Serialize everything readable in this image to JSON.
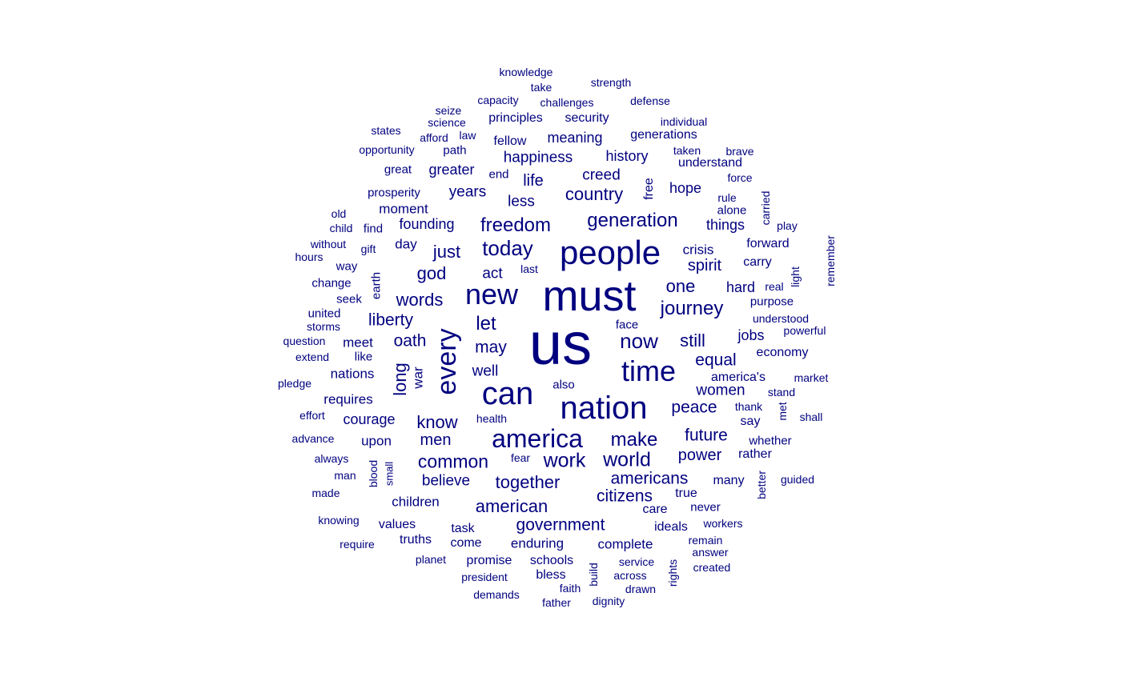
{
  "color": "#00007f",
  "words": [
    {
      "text": "us",
      "weight": 10
    },
    {
      "text": "must",
      "weight": 7.5
    },
    {
      "text": "people",
      "weight": 6.5
    },
    {
      "text": "can",
      "weight": 6.2
    },
    {
      "text": "nation",
      "weight": 6.2
    },
    {
      "text": "new",
      "weight": 5.8
    },
    {
      "text": "time",
      "weight": 5.8
    },
    {
      "text": "every",
      "weight": 5.2
    },
    {
      "text": "america",
      "weight": 5.0
    },
    {
      "text": "generation",
      "weight": 4.1
    },
    {
      "text": "freedom",
      "weight": 4.1
    },
    {
      "text": "today",
      "weight": 4.1
    },
    {
      "text": "journey",
      "weight": 4.1
    },
    {
      "text": "now",
      "weight": 4.1
    },
    {
      "text": "common",
      "weight": 3.9
    },
    {
      "text": "work",
      "weight": 3.9
    },
    {
      "text": "world",
      "weight": 3.9
    },
    {
      "text": "make",
      "weight": 3.9
    },
    {
      "text": "american",
      "weight": 3.7
    },
    {
      "text": "country",
      "weight": 3.7
    },
    {
      "text": "let",
      "weight": 3.7
    },
    {
      "text": "one",
      "weight": 3.7
    },
    {
      "text": "still",
      "weight": 3.7
    },
    {
      "text": "know",
      "weight": 3.7
    },
    {
      "text": "god",
      "weight": 3.7
    },
    {
      "text": "just",
      "weight": 3.7
    },
    {
      "text": "long",
      "weight": 3.6
    },
    {
      "text": "words",
      "weight": 3.6
    },
    {
      "text": "together",
      "weight": 3.6
    },
    {
      "text": "americans",
      "weight": 3.6
    },
    {
      "text": "government",
      "weight": 3.6
    },
    {
      "text": "citizens",
      "weight": 3.6
    },
    {
      "text": "equal",
      "weight": 3.6
    },
    {
      "text": "peace",
      "weight": 3.6
    },
    {
      "text": "future",
      "weight": 3.6
    },
    {
      "text": "liberty",
      "weight": 3.5
    },
    {
      "text": "oath",
      "weight": 3.5
    },
    {
      "text": "may",
      "weight": 3.5
    },
    {
      "text": "spirit",
      "weight": 3.4
    },
    {
      "text": "men",
      "weight": 3.4
    },
    {
      "text": "power",
      "weight": 3.3
    },
    {
      "text": "women",
      "weight": 3.3
    },
    {
      "text": "believe",
      "weight": 3.3
    },
    {
      "text": "happiness",
      "weight": 3.3
    },
    {
      "text": "years",
      "weight": 3.3
    },
    {
      "text": "less",
      "weight": 3.3
    },
    {
      "text": "life",
      "weight": 3.3
    },
    {
      "text": "creed",
      "weight": 3.3
    },
    {
      "text": "well",
      "weight": 3.3
    },
    {
      "text": "act",
      "weight": 3.3
    },
    {
      "text": "hope",
      "weight": 3.2
    },
    {
      "text": "hard",
      "weight": 3.2
    },
    {
      "text": "jobs",
      "weight": 3.2
    },
    {
      "text": "things",
      "weight": 3.2
    },
    {
      "text": "founding",
      "weight": 3.2
    },
    {
      "text": "courage",
      "weight": 3.2
    },
    {
      "text": "history",
      "weight": 3.2
    },
    {
      "text": "meaning",
      "weight": 3.2
    },
    {
      "text": "greater",
      "weight": 3.2
    },
    {
      "text": "children",
      "weight": 3.1
    },
    {
      "text": "moment",
      "weight": 3.1
    },
    {
      "text": "complete",
      "weight": 3.1
    },
    {
      "text": "enduring",
      "weight": 3.1
    },
    {
      "text": "requires",
      "weight": 3.1
    },
    {
      "text": "nations",
      "weight": 3.1
    },
    {
      "text": "crisis",
      "weight": 3.1
    },
    {
      "text": "day",
      "weight": 3.1
    },
    {
      "text": "war",
      "weight": 3.0
    },
    {
      "text": "meet",
      "weight": 3.0
    },
    {
      "text": "upon",
      "weight": 3.0
    },
    {
      "text": "say",
      "weight": 3.0
    },
    {
      "text": "care",
      "weight": 3.0
    },
    {
      "text": "values",
      "weight": 3.0
    },
    {
      "text": "ideals",
      "weight": 3.0
    },
    {
      "text": "promise",
      "weight": 3.0
    },
    {
      "text": "schools",
      "weight": 3.0
    },
    {
      "text": "bless",
      "weight": 3.0
    },
    {
      "text": "truths",
      "weight": 3.0
    },
    {
      "text": "free",
      "weight": 3.0
    },
    {
      "text": "generations",
      "weight": 3.0
    },
    {
      "text": "principles",
      "weight": 3.0
    },
    {
      "text": "security",
      "weight": 3.0
    },
    {
      "text": "fellow",
      "weight": 3.0
    },
    {
      "text": "forward",
      "weight": 3.0
    },
    {
      "text": "economy",
      "weight": 3.0
    },
    {
      "text": "understand",
      "weight": 2.9
    },
    {
      "text": "task",
      "weight": 2.9
    },
    {
      "text": "come",
      "weight": 2.9
    },
    {
      "text": "america's",
      "weight": 2.9
    },
    {
      "text": "carry",
      "weight": 2.9
    },
    {
      "text": "many",
      "weight": 2.9
    },
    {
      "text": "never",
      "weight": 2.9
    },
    {
      "text": "true",
      "weight": 2.9
    },
    {
      "text": "rather",
      "weight": 2.9
    },
    {
      "text": "whether",
      "weight": 2.9
    },
    {
      "text": "prosperity",
      "weight": 2.9
    },
    {
      "text": "great",
      "weight": 2.9
    },
    {
      "text": "path",
      "weight": 2.9
    },
    {
      "text": "find",
      "weight": 2.9
    },
    {
      "text": "face",
      "weight": 2.9
    },
    {
      "text": "earth",
      "weight": 2.9
    },
    {
      "text": "purpose",
      "weight": 2.9
    },
    {
      "text": "alone",
      "weight": 2.9
    },
    {
      "text": "way",
      "weight": 2.9
    },
    {
      "text": "change",
      "weight": 2.9
    },
    {
      "text": "seek",
      "weight": 2.9
    },
    {
      "text": "united",
      "weight": 2.9
    },
    {
      "text": "like",
      "weight": 2.9
    },
    {
      "text": "also",
      "weight": 2.9
    },
    {
      "text": "end",
      "weight": 2.9
    },
    {
      "text": "gift",
      "weight": 2.8
    },
    {
      "text": "fear",
      "weight": 2.8
    },
    {
      "text": "health",
      "weight": 2.8
    },
    {
      "text": "service",
      "weight": 2.8
    },
    {
      "text": "across",
      "weight": 2.8
    },
    {
      "text": "drawn",
      "weight": 2.8
    },
    {
      "text": "build",
      "weight": 2.8
    },
    {
      "text": "rights",
      "weight": 2.8
    },
    {
      "text": "answer",
      "weight": 2.8
    },
    {
      "text": "created",
      "weight": 2.8
    },
    {
      "text": "remain",
      "weight": 2.8
    },
    {
      "text": "workers",
      "weight": 2.8
    },
    {
      "text": "better",
      "weight": 2.8
    },
    {
      "text": "guided",
      "weight": 2.8
    },
    {
      "text": "met",
      "weight": 2.8
    },
    {
      "text": "shall",
      "weight": 2.8
    },
    {
      "text": "stand",
      "weight": 2.8
    },
    {
      "text": "thank",
      "weight": 2.8
    },
    {
      "text": "market",
      "weight": 2.8
    },
    {
      "text": "powerful",
      "weight": 2.8
    },
    {
      "text": "understood",
      "weight": 2.8
    },
    {
      "text": "real",
      "weight": 2.8
    },
    {
      "text": "light",
      "weight": 2.8
    },
    {
      "text": "remember",
      "weight": 2.8
    },
    {
      "text": "play",
      "weight": 2.8
    },
    {
      "text": "carried",
      "weight": 2.8
    },
    {
      "text": "rule",
      "weight": 2.8
    },
    {
      "text": "force",
      "weight": 2.8
    },
    {
      "text": "brave",
      "weight": 2.8
    },
    {
      "text": "taken",
      "weight": 2.8
    },
    {
      "text": "individual",
      "weight": 2.8
    },
    {
      "text": "defense",
      "weight": 2.8
    },
    {
      "text": "strength",
      "weight": 2.8
    },
    {
      "text": "challenges",
      "weight": 2.8
    },
    {
      "text": "capacity",
      "weight": 2.8
    },
    {
      "text": "take",
      "weight": 2.8
    },
    {
      "text": "knowledge",
      "weight": 2.8
    },
    {
      "text": "seize",
      "weight": 2.8
    },
    {
      "text": "science",
      "weight": 2.8
    },
    {
      "text": "law",
      "weight": 2.8
    },
    {
      "text": "afford",
      "weight": 2.8
    },
    {
      "text": "states",
      "weight": 2.8
    },
    {
      "text": "opportunity",
      "weight": 2.8
    },
    {
      "text": "old",
      "weight": 2.8
    },
    {
      "text": "child",
      "weight": 2.8
    },
    {
      "text": "without",
      "weight": 2.8
    },
    {
      "text": "hours",
      "weight": 2.8
    },
    {
      "text": "last",
      "weight": 2.8
    },
    {
      "text": "storms",
      "weight": 2.8
    },
    {
      "text": "question",
      "weight": 2.8
    },
    {
      "text": "extend",
      "weight": 2.8
    },
    {
      "text": "pledge",
      "weight": 2.8
    },
    {
      "text": "effort",
      "weight": 2.8
    },
    {
      "text": "advance",
      "weight": 2.8
    },
    {
      "text": "always",
      "weight": 2.8
    },
    {
      "text": "man",
      "weight": 2.8
    },
    {
      "text": "made",
      "weight": 2.8
    },
    {
      "text": "blood",
      "weight": 2.8
    },
    {
      "text": "small",
      "weight": 2.7
    },
    {
      "text": "knowing",
      "weight": 2.8
    },
    {
      "text": "require",
      "weight": 2.8
    },
    {
      "text": "planet",
      "weight": 2.8
    },
    {
      "text": "president",
      "weight": 2.8
    },
    {
      "text": "demands",
      "weight": 2.8
    },
    {
      "text": "faith",
      "weight": 2.8
    },
    {
      "text": "father",
      "weight": 2.8
    },
    {
      "text": "dignity",
      "weight": 2.8
    }
  ]
}
